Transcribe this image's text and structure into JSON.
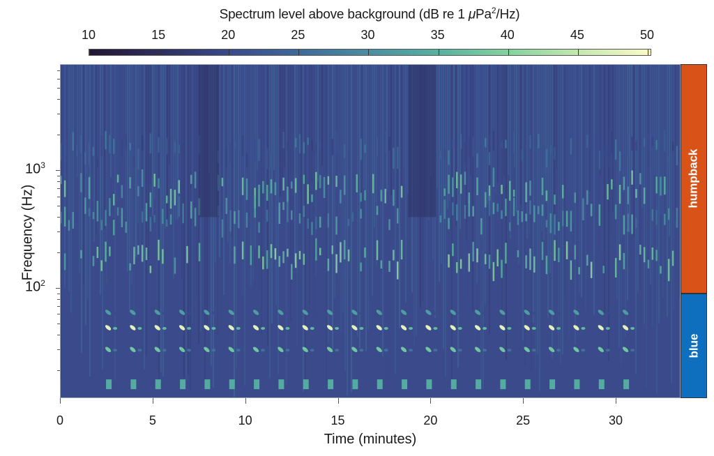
{
  "colorbar": {
    "title_prefix": "Spectrum level above background (dB re 1 ",
    "title_mu": "μ",
    "title_unit": "Pa",
    "title_sup": "2",
    "title_suffix": "/Hz)",
    "ticks": [
      "10",
      "15",
      "20",
      "25",
      "30",
      "35",
      "40",
      "45",
      "50"
    ],
    "range": [
      10,
      50.3
    ],
    "colormap": [
      "#221533",
      "#2e2e5e",
      "#3a4a8c",
      "#3e6a9a",
      "#4a8fa2",
      "#57b3a0",
      "#86d3a0",
      "#c6e8b0",
      "#fbfac8"
    ]
  },
  "axes": {
    "ylabel": "Frequency (Hz)",
    "xlabel": "Time (minutes)",
    "y_ticks": [
      {
        "base": "10",
        "exp": "3",
        "value": 1000
      },
      {
        "base": "10",
        "exp": "2",
        "value": 100
      }
    ],
    "x_ticks": [
      "0",
      "5",
      "10",
      "15",
      "20",
      "25",
      "30"
    ],
    "x_range_min": [
      0,
      33.5
    ],
    "y_range_hz": [
      11.6,
      7950
    ],
    "y_scale": "log"
  },
  "species_bands": [
    {
      "label": "humpback",
      "color": "#d95319",
      "freq_range_hz": [
        90,
        7950
      ]
    },
    {
      "label": "blue",
      "color": "#0f6fbf",
      "freq_range_hz": [
        11.6,
        90
      ]
    }
  ],
  "chart_data": {
    "type": "heatmap",
    "title": "Spectrum level above background (dB re 1 μPa²/Hz)",
    "xlabel": "Time (minutes)",
    "ylabel": "Frequency (Hz)",
    "x_range": [
      0,
      33.5
    ],
    "y_range": [
      11.6,
      7950
    ],
    "y_scale": "log",
    "colorbar_range": [
      10,
      50
    ],
    "colorbar_ticks": [
      10,
      15,
      20,
      25,
      30,
      35,
      40,
      45,
      50
    ],
    "x_ticks": [
      0,
      5,
      10,
      15,
      20,
      25,
      30
    ],
    "y_ticks": [
      100,
      1000
    ],
    "annotations": [
      {
        "label": "humpback",
        "freq_range_hz": [
          90,
          7950
        ],
        "color": "#d95319"
      },
      {
        "label": "blue",
        "freq_range_hz": [
          11.6,
          90
        ],
        "color": "#0f6fbf"
      }
    ],
    "blue_whale_calls": {
      "description": "regularly repeated calls, ~1.3 min interval, from ~2.6 to ~31 min",
      "start_min": 2.6,
      "end_min": 31.0,
      "interval_min": 1.33,
      "bands_hz": [
        {
          "freq_hz": 62,
          "level_db": 32
        },
        {
          "freq_hz": 46,
          "level_db": 48
        },
        {
          "freq_hz": 30,
          "level_db": 38
        },
        {
          "freq_hz": 15,
          "level_db": 34
        }
      ]
    },
    "humpback_song": {
      "description": "song units with energy peaks between 100 Hz and 2 kHz; quieter gaps near 8, 19-20 min",
      "bands_hz": [
        {
          "freq_hz": 700,
          "level_db": 38
        },
        {
          "freq_hz": 400,
          "level_db": 33
        },
        {
          "freq_hz": 170,
          "level_db": 40
        },
        {
          "freq_hz": 1450,
          "level_db": 26
        }
      ],
      "active_segments_min": [
        [
          0,
          7.5
        ],
        [
          8.5,
          18.5
        ],
        [
          20.5,
          33.5
        ]
      ]
    },
    "background_level_db": 20
  }
}
